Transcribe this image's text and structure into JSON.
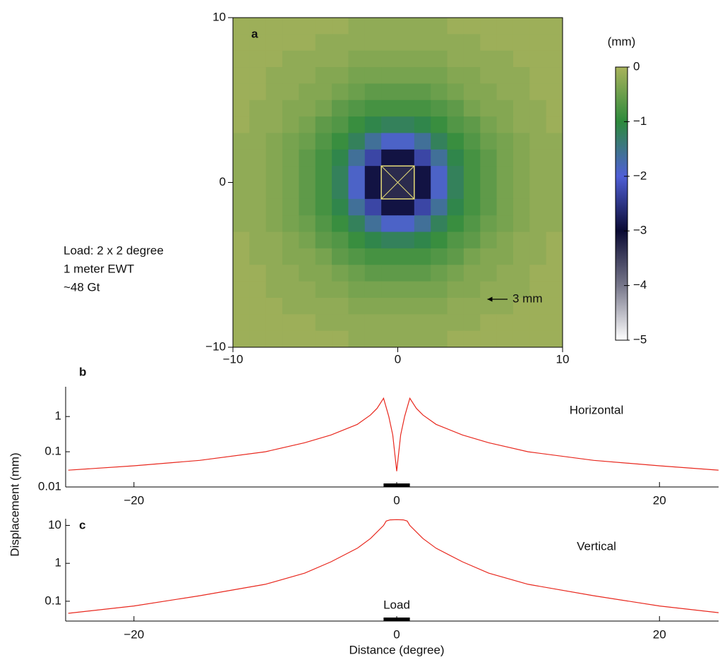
{
  "chart_data": [
    {
      "type": "heatmap",
      "panel": "a",
      "xlim": [
        -10,
        10
      ],
      "ylim": [
        -10,
        10
      ],
      "xticks": [
        {
          "value": -10,
          "label": "−10"
        },
        0,
        10
      ],
      "yticks": [
        {
          "value": -10,
          "label": "−10"
        },
        0,
        10
      ],
      "z": [
        [
          -0.1,
          -0.1,
          -0.1,
          -0.1,
          -0.1,
          -0.1,
          -0.1,
          -0.2,
          -0.2,
          -0.2,
          -0.2,
          -0.2,
          -0.2,
          -0.1,
          -0.1,
          -0.1,
          -0.1,
          -0.1,
          -0.1,
          -0.1
        ],
        [
          -0.1,
          -0.1,
          -0.1,
          -0.1,
          -0.1,
          -0.2,
          -0.2,
          -0.2,
          -0.2,
          -0.2,
          -0.2,
          -0.2,
          -0.2,
          -0.2,
          -0.2,
          -0.1,
          -0.1,
          -0.1,
          -0.1,
          -0.1
        ],
        [
          -0.1,
          -0.1,
          -0.1,
          -0.2,
          -0.2,
          -0.2,
          -0.2,
          -0.3,
          -0.3,
          -0.3,
          -0.3,
          -0.3,
          -0.3,
          -0.2,
          -0.2,
          -0.2,
          -0.2,
          -0.1,
          -0.1,
          -0.1
        ],
        [
          -0.1,
          -0.1,
          -0.2,
          -0.2,
          -0.2,
          -0.3,
          -0.3,
          -0.4,
          -0.4,
          -0.4,
          -0.4,
          -0.4,
          -0.4,
          -0.3,
          -0.3,
          -0.2,
          -0.2,
          -0.2,
          -0.1,
          -0.1
        ],
        [
          -0.1,
          -0.1,
          -0.2,
          -0.2,
          -0.3,
          -0.3,
          -0.4,
          -0.5,
          -0.6,
          -0.6,
          -0.6,
          -0.6,
          -0.5,
          -0.4,
          -0.3,
          -0.3,
          -0.2,
          -0.2,
          -0.1,
          -0.1
        ],
        [
          -0.1,
          -0.2,
          -0.2,
          -0.3,
          -0.3,
          -0.4,
          -0.6,
          -0.7,
          -0.8,
          -0.8,
          -0.8,
          -0.8,
          -0.7,
          -0.6,
          -0.4,
          -0.3,
          -0.3,
          -0.2,
          -0.2,
          -0.1
        ],
        [
          -0.1,
          -0.2,
          -0.2,
          -0.3,
          -0.4,
          -0.6,
          -0.7,
          -0.9,
          -1.1,
          -1.2,
          -1.2,
          -1.1,
          -0.9,
          -0.7,
          -0.6,
          -0.4,
          -0.3,
          -0.2,
          -0.2,
          -0.1
        ],
        [
          -0.2,
          -0.2,
          -0.3,
          -0.4,
          -0.5,
          -0.7,
          -0.9,
          -1.2,
          -1.6,
          -1.9,
          -1.9,
          -1.6,
          -1.2,
          -0.9,
          -0.7,
          -0.5,
          -0.4,
          -0.3,
          -0.2,
          -0.2
        ],
        [
          -0.2,
          -0.2,
          -0.3,
          -0.4,
          -0.6,
          -0.8,
          -1.1,
          -1.6,
          -2.3,
          -2.9,
          -2.9,
          -2.3,
          -1.6,
          -1.1,
          -0.8,
          -0.6,
          -0.4,
          -0.3,
          -0.2,
          -0.2
        ],
        [
          -0.2,
          -0.2,
          -0.3,
          -0.4,
          -0.6,
          -0.8,
          -1.2,
          -1.9,
          -2.9,
          -3.3,
          -3.3,
          -2.9,
          -1.9,
          -1.2,
          -0.8,
          -0.6,
          -0.4,
          -0.3,
          -0.2,
          -0.2
        ],
        [
          -0.2,
          -0.2,
          -0.3,
          -0.4,
          -0.6,
          -0.8,
          -1.2,
          -1.9,
          -2.9,
          -3.3,
          -3.3,
          -2.9,
          -1.9,
          -1.2,
          -0.8,
          -0.6,
          -0.4,
          -0.3,
          -0.2,
          -0.2
        ],
        [
          -0.2,
          -0.2,
          -0.3,
          -0.4,
          -0.6,
          -0.8,
          -1.1,
          -1.6,
          -2.3,
          -2.9,
          -2.9,
          -2.3,
          -1.6,
          -1.1,
          -0.8,
          -0.6,
          -0.4,
          -0.3,
          -0.2,
          -0.2
        ],
        [
          -0.2,
          -0.2,
          -0.3,
          -0.4,
          -0.5,
          -0.7,
          -0.9,
          -1.2,
          -1.6,
          -1.9,
          -1.9,
          -1.6,
          -1.2,
          -0.9,
          -0.7,
          -0.5,
          -0.4,
          -0.3,
          -0.2,
          -0.2
        ],
        [
          -0.1,
          -0.2,
          -0.2,
          -0.3,
          -0.4,
          -0.6,
          -0.7,
          -0.9,
          -1.1,
          -1.2,
          -1.2,
          -1.1,
          -0.9,
          -0.7,
          -0.6,
          -0.4,
          -0.3,
          -0.2,
          -0.2,
          -0.1
        ],
        [
          -0.1,
          -0.2,
          -0.2,
          -0.3,
          -0.3,
          -0.4,
          -0.6,
          -0.7,
          -0.8,
          -0.8,
          -0.8,
          -0.8,
          -0.7,
          -0.6,
          -0.4,
          -0.3,
          -0.3,
          -0.2,
          -0.2,
          -0.1
        ],
        [
          -0.1,
          -0.1,
          -0.2,
          -0.2,
          -0.3,
          -0.3,
          -0.4,
          -0.5,
          -0.6,
          -0.6,
          -0.6,
          -0.6,
          -0.5,
          -0.4,
          -0.3,
          -0.3,
          -0.2,
          -0.2,
          -0.1,
          -0.1
        ],
        [
          -0.1,
          -0.1,
          -0.2,
          -0.2,
          -0.2,
          -0.3,
          -0.3,
          -0.4,
          -0.4,
          -0.4,
          -0.4,
          -0.4,
          -0.4,
          -0.3,
          -0.3,
          -0.2,
          -0.2,
          -0.2,
          -0.1,
          -0.1
        ],
        [
          -0.1,
          -0.1,
          -0.1,
          -0.2,
          -0.2,
          -0.2,
          -0.2,
          -0.3,
          -0.3,
          -0.3,
          -0.3,
          -0.3,
          -0.3,
          -0.2,
          -0.2,
          -0.2,
          -0.2,
          -0.1,
          -0.1,
          -0.1
        ],
        [
          -0.1,
          -0.1,
          -0.1,
          -0.1,
          -0.1,
          -0.2,
          -0.2,
          -0.2,
          -0.2,
          -0.2,
          -0.2,
          -0.2,
          -0.2,
          -0.2,
          -0.2,
          -0.1,
          -0.1,
          -0.1,
          -0.1,
          -0.1
        ],
        [
          -0.1,
          -0.1,
          -0.1,
          -0.1,
          -0.1,
          -0.1,
          -0.1,
          -0.2,
          -0.2,
          -0.2,
          -0.2,
          -0.2,
          -0.2,
          -0.1,
          -0.1,
          -0.1,
          -0.1,
          -0.1,
          -0.1,
          -0.1
        ]
      ],
      "colormap": [
        {
          "value": -5,
          "color": "#ffffff"
        },
        {
          "value": -4,
          "color": "#77778a"
        },
        {
          "value": -3,
          "color": "#0b0b33"
        },
        {
          "value": -2,
          "color": "#4f5fd6"
        },
        {
          "value": -1,
          "color": "#2d8a3c"
        },
        {
          "value": 0,
          "color": "#a9b35c"
        }
      ],
      "colorbar": {
        "label": "(mm)",
        "lim": [
          -5,
          0
        ],
        "ticks": [
          0,
          {
            "value": -1,
            "label": "−1"
          },
          {
            "value": -2,
            "label": "−2"
          },
          {
            "value": -3,
            "label": "−3"
          },
          {
            "value": -4,
            "label": "−4"
          },
          {
            "value": -5,
            "label": "−5"
          }
        ]
      },
      "load_extent": [
        -1,
        1
      ],
      "load_color": "#e6dd78",
      "scale_arrow": {
        "value": 3,
        "label": "3 mm"
      },
      "annotations": [
        "Load: 2 x 2 degree",
        "1 meter EWT",
        "~48 Gt"
      ]
    },
    {
      "type": "line",
      "panel": "b",
      "log_y": true,
      "xlim": [
        -25.2,
        24.5
      ],
      "ylim": [
        0.01,
        7
      ],
      "xticks": [
        {
          "value": -20,
          "label": "−20"
        },
        0,
        20
      ],
      "yticks": [
        1,
        0.1,
        0.01
      ],
      "x": [
        -25,
        -20,
        -15,
        -10,
        -7,
        -5,
        -3,
        -2,
        -1.5,
        -1,
        -0.6,
        -0.3,
        0,
        0.3,
        0.6,
        1,
        1.5,
        2,
        3,
        5,
        7,
        10,
        15,
        20,
        24.5
      ],
      "series": [
        {
          "name": "Horizontal",
          "color": "#e8281e",
          "values": [
            0.03,
            0.04,
            0.057,
            0.1,
            0.18,
            0.3,
            0.6,
            1.1,
            1.7,
            3.3,
            1.0,
            0.3,
            0.028,
            0.3,
            1.0,
            3.3,
            1.7,
            1.1,
            0.6,
            0.3,
            0.18,
            0.1,
            0.057,
            0.04,
            0.03
          ]
        }
      ],
      "load_extent": [
        -1,
        1
      ]
    },
    {
      "type": "line",
      "panel": "c",
      "log_y": true,
      "xlim": [
        -25.2,
        24.5
      ],
      "ylim": [
        0.03,
        15
      ],
      "xticks": [
        {
          "value": -20,
          "label": "−20"
        },
        0,
        20
      ],
      "yticks": [
        10,
        1,
        0.1
      ],
      "x": [
        -25,
        -20,
        -15,
        -10,
        -7,
        -5,
        -3,
        -2,
        -1,
        -0.8,
        -0.5,
        0,
        0.5,
        0.8,
        1,
        2,
        3,
        5,
        7,
        10,
        15,
        20,
        24.5
      ],
      "series": [
        {
          "name": "Vertical",
          "color": "#e8281e",
          "values": [
            0.048,
            0.075,
            0.14,
            0.28,
            0.55,
            1.1,
            2.5,
            4.5,
            10,
            13,
            14,
            14.2,
            14,
            13,
            10,
            4.5,
            2.5,
            1.1,
            0.55,
            0.28,
            0.14,
            0.075,
            0.05
          ]
        }
      ],
      "load_extent": [
        -1,
        1
      ],
      "load_label": "Load"
    }
  ],
  "x_label": "Distance (degree)",
  "y_label": "Displacement (mm)"
}
